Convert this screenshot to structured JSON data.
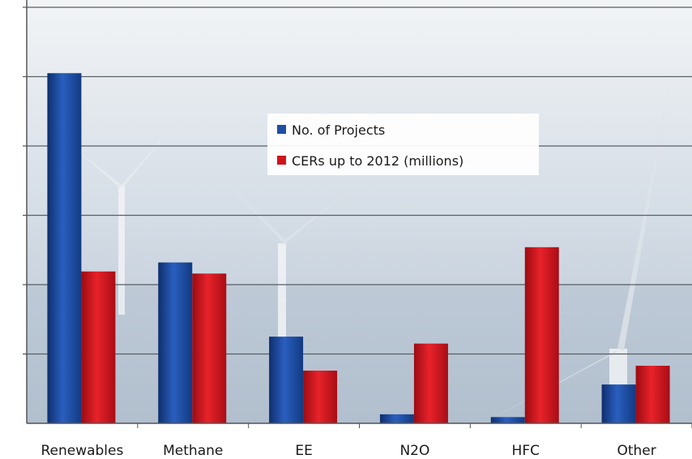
{
  "chart_data": {
    "type": "bar",
    "title": "",
    "xlabel": "",
    "ylabel": "",
    "categories": [
      "Renewables",
      "Methane",
      "EE",
      "N2O",
      "HFC",
      "Other"
    ],
    "series": [
      {
        "name": "No. of Projects",
        "color": "#1f4ea3",
        "values": [
          5.05,
          2.32,
          1.25,
          0.13,
          0.09,
          0.56
        ]
      },
      {
        "name": "CERs up to 2012 (millions)",
        "color": "#d0141c",
        "values": [
          2.19,
          2.16,
          0.76,
          1.15,
          2.54,
          0.83
        ]
      }
    ],
    "ylim": [
      0,
      6
    ],
    "grid": true,
    "legend_position": "center",
    "background": "photograph of offshore wind turbines"
  }
}
